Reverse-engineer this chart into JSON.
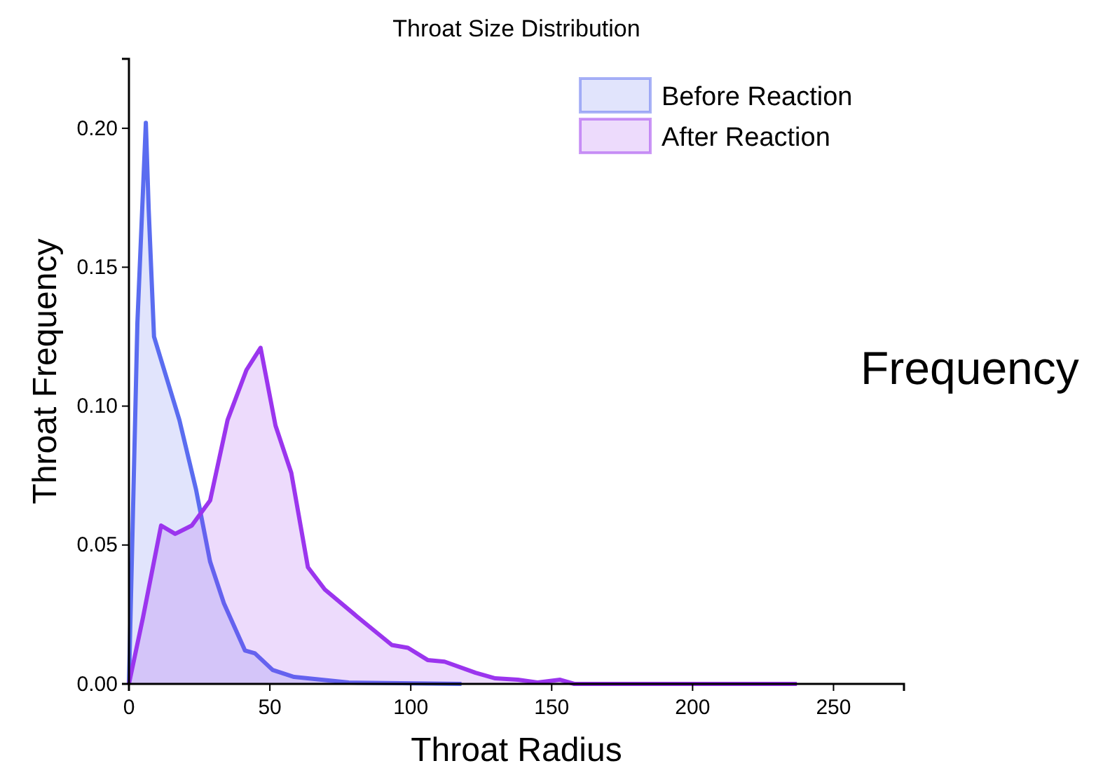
{
  "chart_data": {
    "type": "area",
    "title": "Throat Size Distribution",
    "xlabel": "Throat Radius",
    "ylabel": "Throat Frequency",
    "xlim": [
      0,
      275
    ],
    "xticks": [
      0,
      50,
      100,
      150,
      200,
      250
    ],
    "ylim": [
      0,
      0.225
    ],
    "yticks": [
      {
        "value": 0,
        "label": "0.00"
      },
      0.05,
      {
        "value": 0.1,
        "label": "0.10"
      },
      0.15,
      {
        "value": 0.2,
        "label": "0.20"
      }
    ],
    "grid": false,
    "legend": "top right",
    "annotations": [
      "Frequency"
    ],
    "series": [
      {
        "name": "Before Reaction",
        "color": "#5a6cf0",
        "x": [
          0,
          3,
          6,
          7,
          8.9,
          17.9,
          23.8,
          28.8,
          33.7,
          41.2,
          44.7,
          51,
          58.6,
          78,
          118
        ],
        "values": [
          0,
          0.13,
          0.202,
          0.171,
          0.125,
          0.095,
          0.07,
          0.044,
          0.029,
          0.012,
          0.011,
          0.005,
          0.0025,
          0.0005,
          0
        ]
      },
      {
        "name": "After Reaction",
        "color": "#9b35ee",
        "x": [
          0,
          5,
          11.4,
          16.4,
          22.3,
          28.8,
          35,
          41.7,
          46.7,
          52,
          57.6,
          63.5,
          69.5,
          82.4,
          93.3,
          99,
          106,
          112,
          123,
          130,
          138,
          145,
          153,
          158,
          202,
          222,
          237
        ],
        "values": [
          0,
          0.024,
          0.057,
          0.054,
          0.057,
          0.066,
          0.095,
          0.113,
          0.121,
          0.093,
          0.076,
          0.042,
          0.034,
          0.023,
          0.014,
          0.013,
          0.0086,
          0.008,
          0.004,
          0.002,
          0.0015,
          0.0005,
          0.0015,
          0,
          0,
          0,
          0
        ]
      }
    ]
  }
}
